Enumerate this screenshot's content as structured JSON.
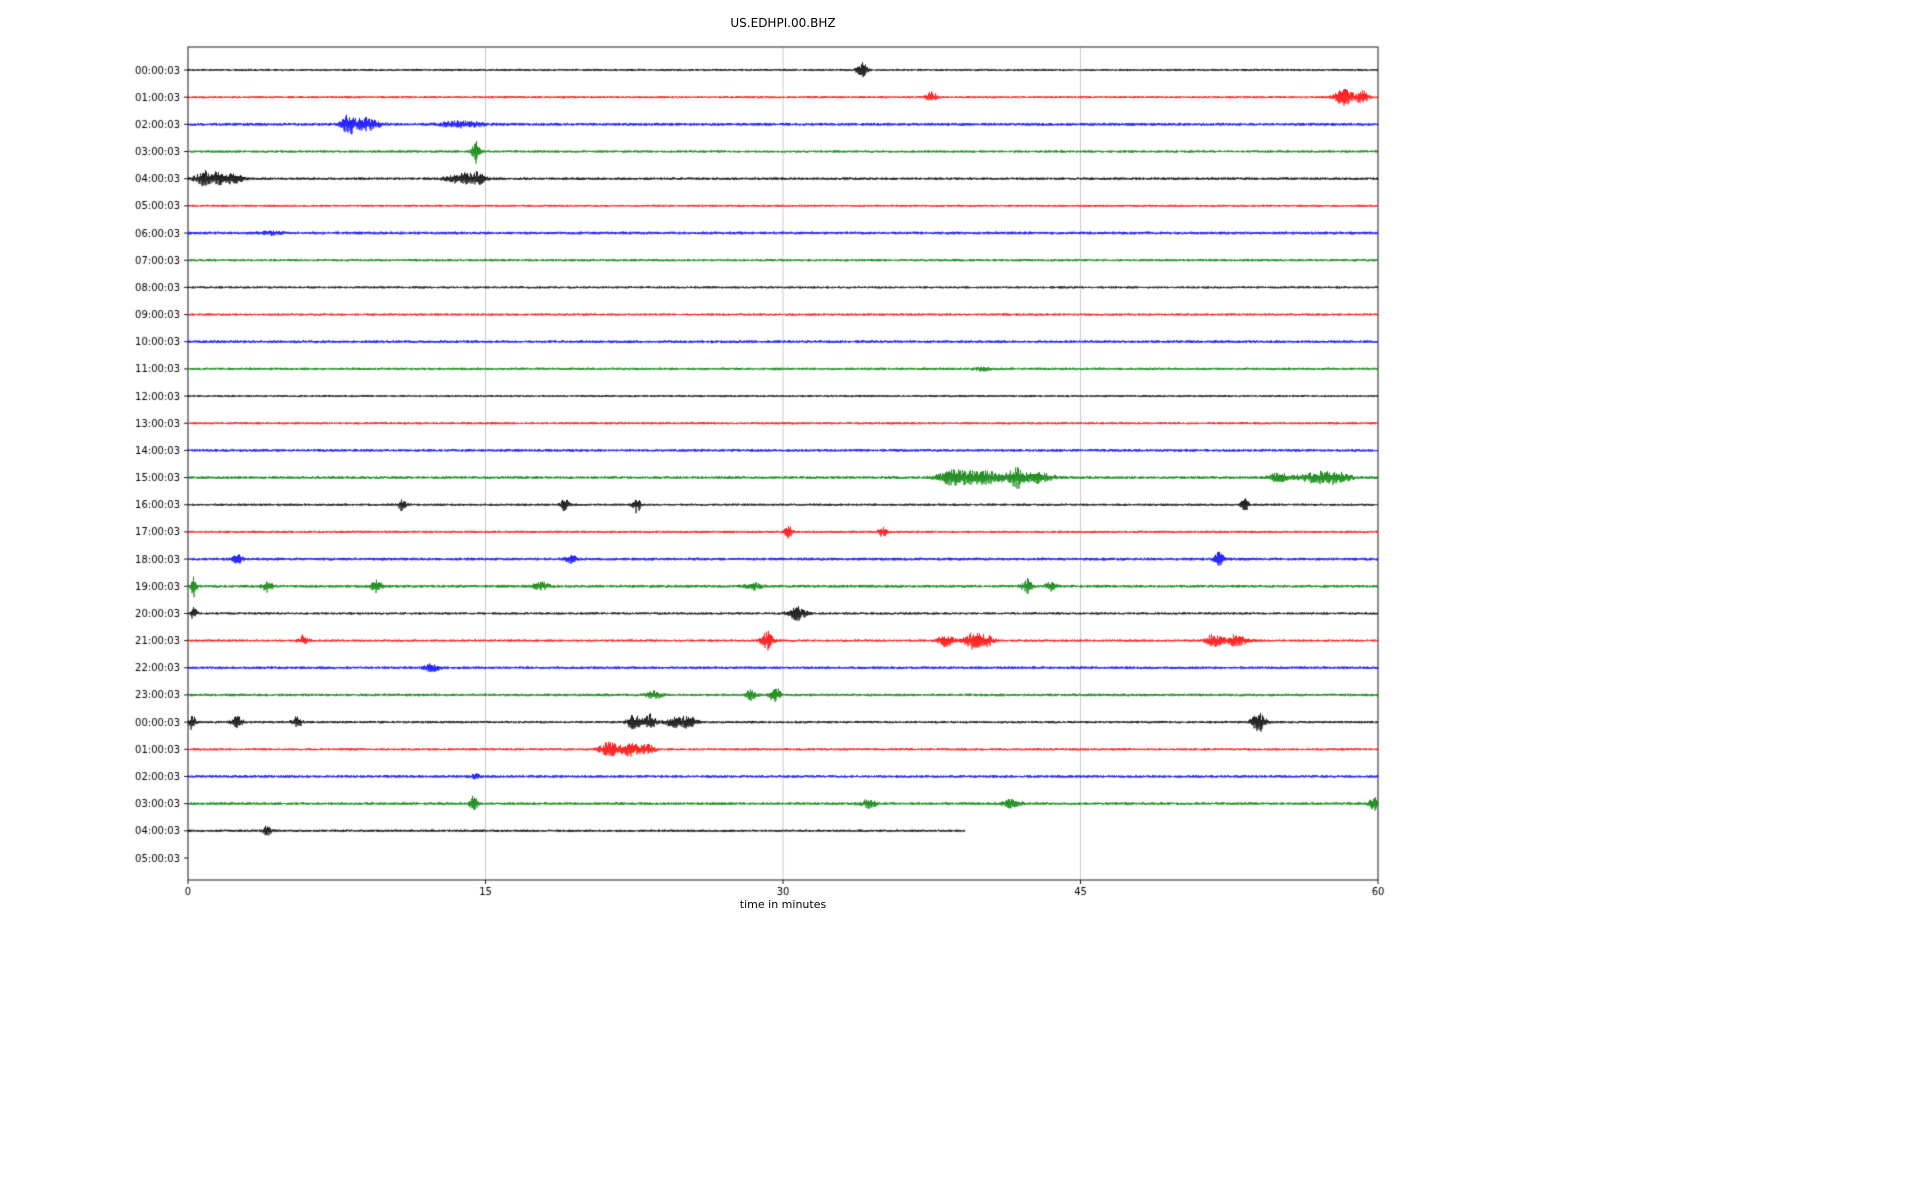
{
  "title": "US.EDHPI.00.BHZ",
  "chart_data": {
    "type": "line",
    "subtype": "seismogram-helicorder-dayplot",
    "title": "US.EDHPI.00.BHZ",
    "xlabel": "time in minutes",
    "xlim": [
      0,
      60
    ],
    "xticks": [
      0,
      15,
      30,
      45,
      60
    ],
    "grid": "vertical gridlines at 15, 30, 45",
    "trace_color_cycle": [
      "#000000",
      "#ff0000",
      "#0000ff",
      "#008000"
    ],
    "grid_color": "#bbbbbb",
    "rows": [
      {
        "label": "00:00:03",
        "color": "#000000",
        "end_minute": 60,
        "base_amp": 1.15,
        "events": [
          [
            34,
            7,
            0.25
          ]
        ]
      },
      {
        "label": "01:00:03",
        "color": "#ff0000",
        "end_minute": 60,
        "base_amp": 1.15,
        "events": [
          [
            37.5,
            5,
            0.25
          ],
          [
            58.3,
            8,
            0.45
          ],
          [
            59.2,
            6,
            0.3
          ]
        ]
      },
      {
        "label": "02:00:03",
        "color": "#0000ff",
        "end_minute": 60,
        "base_amp": 1.5,
        "events": [
          [
            8.1,
            9,
            0.35
          ],
          [
            9.0,
            6,
            0.6
          ],
          [
            13.8,
            3,
            1.0
          ]
        ]
      },
      {
        "label": "03:00:03",
        "color": "#008000",
        "end_minute": 60,
        "base_amp": 1.3,
        "events": [
          [
            14.5,
            11,
            0.18
          ]
        ]
      },
      {
        "label": "04:00:03",
        "color": "#000000",
        "end_minute": 60,
        "base_amp": 1.35,
        "events": [
          [
            0.8,
            5,
            0.5
          ],
          [
            1.5,
            5,
            0.7
          ],
          [
            2.4,
            3.5,
            0.4
          ],
          [
            13.8,
            5,
            0.7
          ],
          [
            14.6,
            5,
            0.35
          ]
        ]
      },
      {
        "label": "05:00:03",
        "color": "#ff0000",
        "end_minute": 60,
        "base_amp": 1.1,
        "events": []
      },
      {
        "label": "06:00:03",
        "color": "#0000ff",
        "end_minute": 60,
        "base_amp": 1.45,
        "events": [
          [
            4.2,
            2,
            0.5
          ]
        ]
      },
      {
        "label": "07:00:03",
        "color": "#008000",
        "end_minute": 60,
        "base_amp": 1.25,
        "events": []
      },
      {
        "label": "08:00:03",
        "color": "#000000",
        "end_minute": 60,
        "base_amp": 1.15,
        "events": []
      },
      {
        "label": "09:00:03",
        "color": "#ff0000",
        "end_minute": 60,
        "base_amp": 1.2,
        "events": []
      },
      {
        "label": "10:00:03",
        "color": "#0000ff",
        "end_minute": 60,
        "base_amp": 1.45,
        "events": []
      },
      {
        "label": "11:00:03",
        "color": "#008000",
        "end_minute": 60,
        "base_amp": 1.3,
        "events": [
          [
            40,
            2,
            0.4
          ]
        ]
      },
      {
        "label": "12:00:03",
        "color": "#000000",
        "end_minute": 60,
        "base_amp": 1.1,
        "events": []
      },
      {
        "label": "13:00:03",
        "color": "#ff0000",
        "end_minute": 60,
        "base_amp": 1.2,
        "events": []
      },
      {
        "label": "14:00:03",
        "color": "#0000ff",
        "end_minute": 60,
        "base_amp": 1.4,
        "events": []
      },
      {
        "label": "15:00:03",
        "color": "#008000",
        "end_minute": 60,
        "base_amp": 1.45,
        "events": [
          [
            38.5,
            5,
            0.7
          ],
          [
            40,
            6,
            1.4
          ],
          [
            41.8,
            9,
            0.35
          ],
          [
            42.9,
            5,
            0.7
          ],
          [
            55,
            4,
            0.5
          ],
          [
            57,
            5,
            1.0
          ],
          [
            58,
            4,
            0.6
          ]
        ]
      },
      {
        "label": "16:00:03",
        "color": "#000000",
        "end_minute": 60,
        "base_amp": 1.2,
        "events": [
          [
            10.8,
            6,
            0.18
          ],
          [
            19,
            7,
            0.18
          ],
          [
            22.6,
            8,
            0.2
          ],
          [
            53.3,
            6,
            0.18
          ]
        ]
      },
      {
        "label": "17:00:03",
        "color": "#ff0000",
        "end_minute": 60,
        "base_amp": 1.2,
        "events": [
          [
            30.3,
            6,
            0.2
          ],
          [
            35,
            5,
            0.2
          ]
        ]
      },
      {
        "label": "18:00:03",
        "color": "#0000ff",
        "end_minute": 60,
        "base_amp": 1.45,
        "events": [
          [
            2.5,
            4,
            0.25
          ],
          [
            19.3,
            4,
            0.25
          ],
          [
            52,
            6,
            0.25
          ]
        ]
      },
      {
        "label": "19:00:03",
        "color": "#008000",
        "end_minute": 60,
        "base_amp": 1.45,
        "events": [
          [
            0.3,
            10,
            0.15
          ],
          [
            4,
            5,
            0.25
          ],
          [
            9.5,
            6,
            0.25
          ],
          [
            17.8,
            3.5,
            0.4
          ],
          [
            28.5,
            3,
            0.4
          ],
          [
            42.3,
            7,
            0.25
          ],
          [
            43.5,
            4,
            0.25
          ]
        ]
      },
      {
        "label": "20:00:03",
        "color": "#000000",
        "end_minute": 60,
        "base_amp": 1.2,
        "events": [
          [
            0.3,
            6,
            0.15
          ],
          [
            30.7,
            7,
            0.45
          ]
        ]
      },
      {
        "label": "21:00:03",
        "color": "#ff0000",
        "end_minute": 60,
        "base_amp": 1.2,
        "events": [
          [
            5.8,
            5,
            0.25
          ],
          [
            29.2,
            9,
            0.3
          ],
          [
            38.2,
            6,
            0.35
          ],
          [
            39.6,
            8,
            0.45
          ],
          [
            40.3,
            5,
            0.3
          ],
          [
            51.7,
            6,
            0.35
          ],
          [
            52.8,
            5,
            0.6
          ]
        ]
      },
      {
        "label": "22:00:03",
        "color": "#0000ff",
        "end_minute": 60,
        "base_amp": 1.4,
        "events": [
          [
            12.3,
            3.5,
            0.35
          ]
        ]
      },
      {
        "label": "23:00:03",
        "color": "#008000",
        "end_minute": 60,
        "base_amp": 1.35,
        "events": [
          [
            23.5,
            3.5,
            0.4
          ],
          [
            28.4,
            5,
            0.25
          ],
          [
            29.6,
            8,
            0.25
          ]
        ]
      },
      {
        "label": "00:00:03",
        "color": "#000000",
        "end_minute": 60,
        "base_amp": 1.25,
        "events": [
          [
            0.2,
            7,
            0.18
          ],
          [
            2.5,
            6,
            0.25
          ],
          [
            5.5,
            5,
            0.25
          ],
          [
            22.5,
            7,
            0.35
          ],
          [
            23.3,
            8,
            0.3
          ],
          [
            24.6,
            6,
            0.45
          ],
          [
            25.3,
            5,
            0.35
          ],
          [
            54,
            9,
            0.35
          ]
        ]
      },
      {
        "label": "01:00:03",
        "color": "#ff0000",
        "end_minute": 60,
        "base_amp": 1.2,
        "events": [
          [
            21.2,
            7,
            0.45
          ],
          [
            22.3,
            6,
            0.55
          ],
          [
            23.2,
            4,
            0.35
          ]
        ]
      },
      {
        "label": "02:00:03",
        "color": "#0000ff",
        "end_minute": 60,
        "base_amp": 1.4,
        "events": [
          [
            14.5,
            2,
            0.3
          ]
        ]
      },
      {
        "label": "03:00:03",
        "color": "#008000",
        "end_minute": 60,
        "base_amp": 1.45,
        "events": [
          [
            14.4,
            7,
            0.18
          ],
          [
            34.3,
            4,
            0.35
          ],
          [
            41.5,
            3.5,
            0.45
          ],
          [
            59.8,
            6,
            0.25
          ]
        ]
      },
      {
        "label": "04:00:03",
        "color": "#000000",
        "end_minute": 39.2,
        "base_amp": 1.3,
        "events": [
          [
            4,
            5,
            0.2
          ]
        ]
      },
      {
        "label": "05:00:03",
        "color": null,
        "end_minute": 0,
        "base_amp": 0,
        "events": []
      }
    ]
  }
}
